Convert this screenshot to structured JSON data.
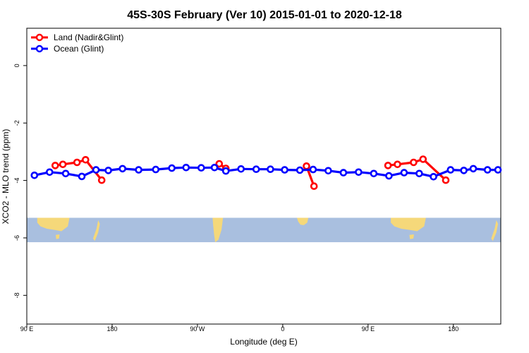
{
  "chart_data": {
    "type": "line",
    "title": "45S-30S February (Ver 10)   2015-01-01 to 2020-12-18",
    "xlabel": "Longitude (deg E)",
    "ylabel": "XCO2 - MLO trend (ppm)",
    "xlim": [
      90,
      590
    ],
    "ylim": [
      -9.0,
      1.3
    ],
    "x_ticks": [
      {
        "value": 90,
        "label": "90 E"
      },
      {
        "value": 180,
        "label": "180"
      },
      {
        "value": 270,
        "label": "90 W"
      },
      {
        "value": 360,
        "label": "0"
      },
      {
        "value": 450,
        "label": "90 E"
      },
      {
        "value": 540,
        "label": "180"
      }
    ],
    "y_ticks": [
      {
        "value": 0,
        "label": "0"
      },
      {
        "value": -2,
        "label": "-2"
      },
      {
        "value": -4,
        "label": "-4"
      },
      {
        "value": -6,
        "label": "-6"
      },
      {
        "value": -8,
        "label": "-8"
      }
    ],
    "grid": false,
    "legend_position": "top-left",
    "background_map": {
      "band_y": [
        -5.3,
        -6.15
      ],
      "ocean_color": "#a9bfdf",
      "land_color": "#f5d87a"
    },
    "series": [
      {
        "name": "Land (Nadir&Glint)",
        "color": "#ff0000",
        "segments": [
          [
            [
              120,
              -3.48
            ],
            [
              128,
              -3.44
            ],
            [
              143,
              -3.37
            ],
            [
              152,
              -3.28
            ],
            [
              169,
              -3.99
            ]
          ],
          [
            [
              293,
              -3.42
            ],
            [
              300,
              -3.58
            ]
          ],
          [
            [
              385,
              -3.5
            ],
            [
              393,
              -4.2
            ]
          ],
          [
            [
              471,
              -3.48
            ],
            [
              481,
              -3.44
            ],
            [
              498,
              -3.37
            ],
            [
              508,
              -3.26
            ],
            [
              532,
              -3.99
            ]
          ]
        ]
      },
      {
        "name": "Ocean (Glint)",
        "color": "#0000ff",
        "segments": [
          [
            [
              98,
              -3.82
            ],
            [
              114,
              -3.71
            ],
            [
              131,
              -3.76
            ],
            [
              148,
              -3.86
            ],
            [
              163,
              -3.63
            ],
            [
              176,
              -3.65
            ],
            [
              191,
              -3.59
            ],
            [
              208,
              -3.63
            ],
            [
              226,
              -3.62
            ],
            [
              243,
              -3.57
            ],
            [
              258,
              -3.55
            ],
            [
              274,
              -3.56
            ],
            [
              288,
              -3.55
            ],
            [
              300,
              -3.67
            ],
            [
              316,
              -3.6
            ],
            [
              332,
              -3.61
            ],
            [
              347,
              -3.61
            ],
            [
              362,
              -3.63
            ],
            [
              378,
              -3.64
            ],
            [
              392,
              -3.62
            ],
            [
              408,
              -3.66
            ],
            [
              424,
              -3.73
            ],
            [
              440,
              -3.71
            ],
            [
              456,
              -3.76
            ],
            [
              472,
              -3.84
            ],
            [
              488,
              -3.73
            ],
            [
              504,
              -3.76
            ],
            [
              519,
              -3.87
            ],
            [
              537,
              -3.63
            ],
            [
              551,
              -3.65
            ],
            [
              561,
              -3.59
            ],
            [
              576,
              -3.63
            ],
            [
              587,
              -3.63
            ]
          ]
        ]
      }
    ]
  }
}
